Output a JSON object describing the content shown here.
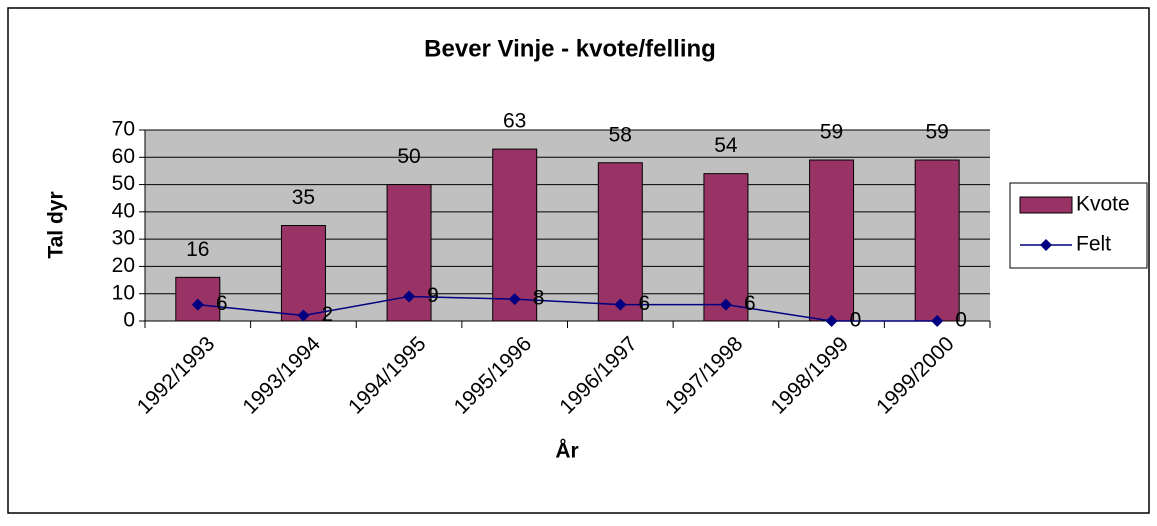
{
  "chart_data": {
    "type": "bar",
    "title": "Bever Vinje - kvote/felling",
    "x_label": "År",
    "y_label": "Tal dyr",
    "categories": [
      "1992/1993",
      "1993/1994",
      "1994/1995",
      "1995/1996",
      "1996/1997",
      "1997/1998",
      "1998/1999",
      "1999/2000"
    ],
    "series": [
      {
        "name": "Kvote",
        "type": "bar",
        "color": "#993366",
        "values": [
          16,
          35,
          50,
          63,
          58,
          54,
          59,
          59
        ]
      },
      {
        "name": "Felt",
        "type": "line",
        "color": "#000080",
        "values": [
          6,
          2,
          9,
          8,
          6,
          6,
          0,
          0
        ]
      }
    ],
    "ylim": [
      0,
      70
    ],
    "yticks": [
      0,
      10,
      20,
      30,
      40,
      50,
      60,
      70
    ],
    "grid": true,
    "legend": "right"
  }
}
